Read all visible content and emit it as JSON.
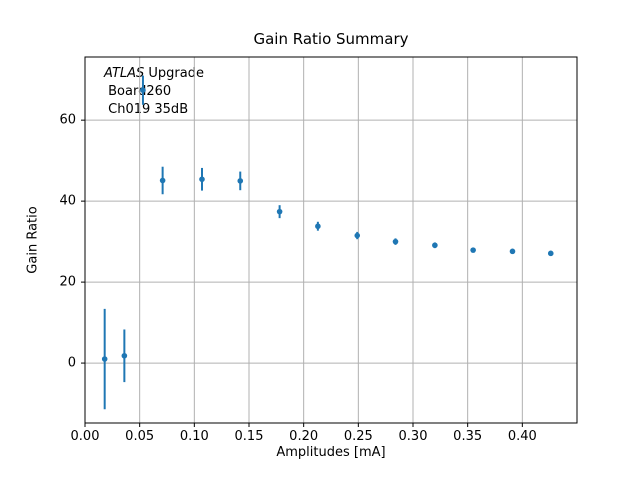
{
  "window": {
    "background": "#ffffff"
  },
  "chart_data": {
    "type": "scatter",
    "title": "Gain Ratio Summary",
    "xlabel": "Amplitudes [mA]",
    "ylabel": "Gain Ratio",
    "xlim": [
      0,
      0.45
    ],
    "ylim": [
      -14.8,
      75.6
    ],
    "grid": true,
    "legend_position": "none",
    "colors": {
      "marker": "#1f77b4",
      "errorbar": "#1f77b4",
      "grid": "#b0b0b0",
      "axis": "#000000",
      "text": "#000000"
    },
    "annotation": {
      "lines": [
        {
          "italic": "ATLAS",
          "text": " Upgrade"
        },
        {
          "italic": "",
          "text": " Board260"
        },
        {
          "italic": "",
          "text": " Ch019 35dB"
        }
      ]
    },
    "xticks": {
      "values": [
        0,
        0.05,
        0.1,
        0.15,
        0.2,
        0.25,
        0.3,
        0.35,
        0.4
      ],
      "labels": [
        "0.00",
        "0.05",
        "0.10",
        "0.15",
        "0.20",
        "0.25",
        "0.30",
        "0.35",
        "0.40"
      ]
    },
    "yticks": {
      "values": [
        0,
        20,
        40,
        60
      ],
      "labels": [
        "0",
        "20",
        "40",
        "60"
      ]
    },
    "series": [
      {
        "name": "gain-ratio-points",
        "x": [
          0.018,
          0.036,
          0.053,
          0.071,
          0.107,
          0.142,
          0.178,
          0.213,
          0.249,
          0.284,
          0.32,
          0.355,
          0.391,
          0.426
        ],
        "y": [
          1.0,
          1.8,
          67.4,
          45.1,
          45.4,
          45.0,
          37.4,
          33.8,
          31.5,
          30.0,
          29.1,
          27.9,
          27.6,
          27.1
        ],
        "yerr": [
          12.4,
          6.5,
          3.6,
          3.4,
          2.8,
          2.3,
          1.6,
          1.1,
          0.9,
          0.8,
          0.7,
          0.6,
          0.5,
          0.5
        ]
      }
    ]
  }
}
